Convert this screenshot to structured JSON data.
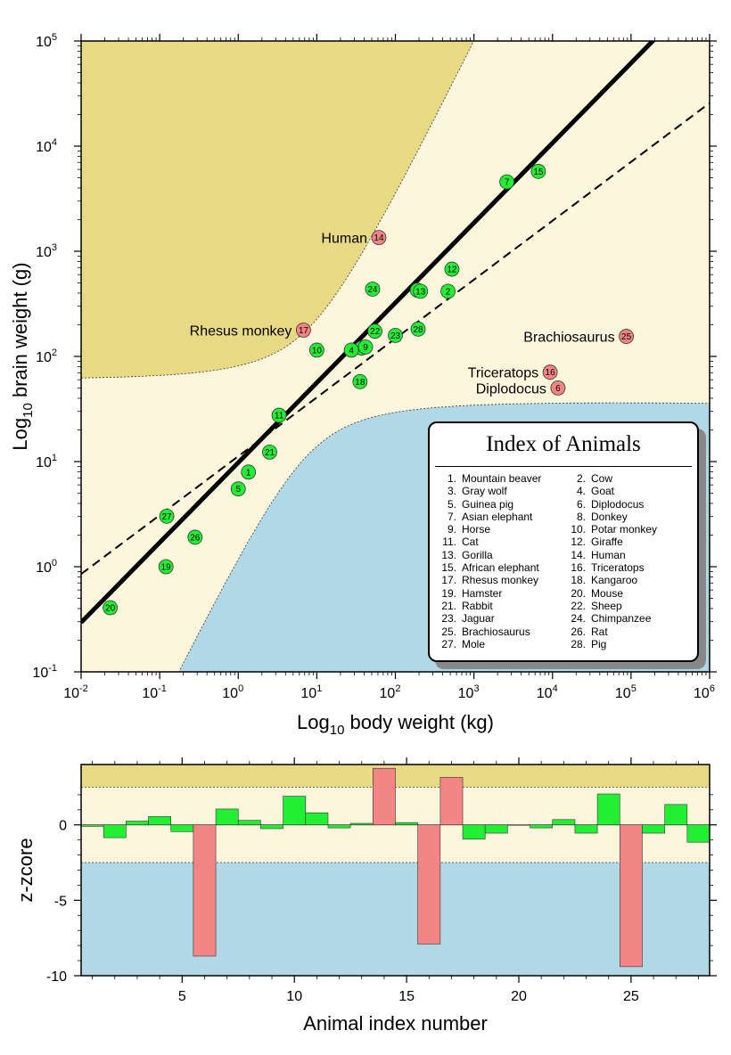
{
  "chart_data": [
    {
      "type": "scatter",
      "xlabel_main": "Log",
      "xlabel_sub": "10",
      "xlabel_rest": " body weight (kg)",
      "ylabel_main": "Log",
      "ylabel_sub": "10",
      "ylabel_rest": " brain weight (g)",
      "x_log_range": [
        -2,
        6
      ],
      "y_log_range": [
        -1,
        5
      ],
      "x_ticks": [
        {
          "base": "10",
          "exp": "-2"
        },
        {
          "base": "10",
          "exp": "-1"
        },
        {
          "base": "10",
          "exp": "0"
        },
        {
          "base": "10",
          "exp": "1"
        },
        {
          "base": "10",
          "exp": "2"
        },
        {
          "base": "10",
          "exp": "3"
        },
        {
          "base": "10",
          "exp": "4"
        },
        {
          "base": "10",
          "exp": "5"
        },
        {
          "base": "10",
          "exp": "6"
        }
      ],
      "y_ticks": [
        {
          "base": "10",
          "exp": "-1"
        },
        {
          "base": "10",
          "exp": "0"
        },
        {
          "base": "10",
          "exp": "1"
        },
        {
          "base": "10",
          "exp": "2"
        },
        {
          "base": "10",
          "exp": "3"
        },
        {
          "base": "10",
          "exp": "4"
        },
        {
          "base": "10",
          "exp": "5"
        }
      ],
      "regression_fit": {
        "intercept_log": 0.99,
        "slope": 0.76
      },
      "comparison_line": {
        "intercept_log": 1.05,
        "slope": 0.56
      },
      "band_halfwidth_log": 0.6,
      "band_curve": 0.6,
      "colors": {
        "upper": "#e8d985",
        "band": "#fdf6dc",
        "lower": "#b0d8e6",
        "inlier": "#22ee33",
        "outlier": "#f48585"
      },
      "points": [
        {
          "id": "1",
          "lx": 0.13,
          "ly": 0.9,
          "outlier": false
        },
        {
          "id": "2",
          "lx": 2.67,
          "ly": 2.62,
          "outlier": false
        },
        {
          "id": "3",
          "lx": 1.57,
          "ly": 2.08,
          "outlier": false
        },
        {
          "id": "4",
          "lx": 1.44,
          "ly": 2.06,
          "outlier": false
        },
        {
          "id": "5",
          "lx": 0.0,
          "ly": 0.74,
          "outlier": false
        },
        {
          "id": "6",
          "lx": 4.07,
          "ly": 1.7,
          "outlier": true,
          "name": "Diplodocus"
        },
        {
          "id": "7",
          "lx": 3.42,
          "ly": 3.66,
          "outlier": false
        },
        {
          "id": "8",
          "lx": 2.28,
          "ly": 2.63,
          "outlier": false
        },
        {
          "id": "9",
          "lx": 1.62,
          "ly": 2.09,
          "outlier": false
        },
        {
          "id": "10",
          "lx": 1.0,
          "ly": 2.06,
          "outlier": false
        },
        {
          "id": "11",
          "lx": 0.52,
          "ly": 1.44,
          "outlier": false
        },
        {
          "id": "12",
          "lx": 2.72,
          "ly": 2.83,
          "outlier": false
        },
        {
          "id": "13",
          "lx": 2.32,
          "ly": 2.62,
          "outlier": false
        },
        {
          "id": "14",
          "lx": 1.79,
          "ly": 3.13,
          "outlier": true,
          "name": "Human"
        },
        {
          "id": "15",
          "lx": 3.82,
          "ly": 3.76,
          "outlier": false
        },
        {
          "id": "16",
          "lx": 3.97,
          "ly": 1.85,
          "outlier": true,
          "name": "Triceratops"
        },
        {
          "id": "17",
          "lx": 0.83,
          "ly": 2.25,
          "outlier": true,
          "name": "Rhesus monkey"
        },
        {
          "id": "18",
          "lx": 1.55,
          "ly": 1.76,
          "outlier": false
        },
        {
          "id": "19",
          "lx": -0.92,
          "ly": 0.0,
          "outlier": false
        },
        {
          "id": "20",
          "lx": -1.63,
          "ly": -0.39,
          "outlier": false
        },
        {
          "id": "21",
          "lx": 0.4,
          "ly": 1.09,
          "outlier": false
        },
        {
          "id": "22",
          "lx": 1.74,
          "ly": 2.24,
          "outlier": false
        },
        {
          "id": "23",
          "lx": 2.0,
          "ly": 2.2,
          "outlier": false
        },
        {
          "id": "24",
          "lx": 1.71,
          "ly": 2.64,
          "outlier": false
        },
        {
          "id": "25",
          "lx": 4.94,
          "ly": 2.19,
          "outlier": true,
          "name": "Brachiosaurus"
        },
        {
          "id": "26",
          "lx": -0.55,
          "ly": 0.28,
          "outlier": false
        },
        {
          "id": "27",
          "lx": -0.91,
          "ly": 0.48,
          "outlier": false
        },
        {
          "id": "28",
          "lx": 2.29,
          "ly": 2.26,
          "outlier": false
        }
      ],
      "legend": {
        "title": "Index of Animals",
        "entries": [
          {
            "num": "1.",
            "name": "Mountain beaver"
          },
          {
            "num": "2.",
            "name": "Cow"
          },
          {
            "num": "3.",
            "name": "Gray wolf"
          },
          {
            "num": "4.",
            "name": "Goat"
          },
          {
            "num": "5.",
            "name": "Guinea pig"
          },
          {
            "num": "6.",
            "name": "Diplodocus"
          },
          {
            "num": "7.",
            "name": "Asian elephant"
          },
          {
            "num": "8.",
            "name": "Donkey"
          },
          {
            "num": "9.",
            "name": "Horse"
          },
          {
            "num": "10.",
            "name": "Potar monkey"
          },
          {
            "num": "11.",
            "name": "Cat"
          },
          {
            "num": "12.",
            "name": "Giraffe"
          },
          {
            "num": "13.",
            "name": "Gorilla"
          },
          {
            "num": "14.",
            "name": "Human"
          },
          {
            "num": "15.",
            "name": "African elephant"
          },
          {
            "num": "16.",
            "name": "Triceratops"
          },
          {
            "num": "17.",
            "name": "Rhesus monkey"
          },
          {
            "num": "18.",
            "name": "Kangaroo"
          },
          {
            "num": "19.",
            "name": "Hamster"
          },
          {
            "num": "20.",
            "name": "Mouse"
          },
          {
            "num": "21.",
            "name": "Rabbit"
          },
          {
            "num": "22.",
            "name": "Sheep"
          },
          {
            "num": "23.",
            "name": "Jaguar"
          },
          {
            "num": "24.",
            "name": "Chimpanzee"
          },
          {
            "num": "25.",
            "name": "Brachiosaurus"
          },
          {
            "num": "26.",
            "name": "Rat"
          },
          {
            "num": "27.",
            "name": "Mole"
          },
          {
            "num": "28.",
            "name": "Pig"
          }
        ]
      }
    },
    {
      "type": "bar",
      "xlabel": "Animal index number",
      "ylabel": "z-zcore",
      "xlim": [
        0.5,
        28.5
      ],
      "ylim": [
        -10,
        4
      ],
      "band_limits": [
        -2.5,
        2.5
      ],
      "x_ticks": [
        "5",
        "10",
        "15",
        "20",
        "25"
      ],
      "y_ticks": [
        "-10",
        "-5",
        "0"
      ],
      "categories": [
        "1",
        "2",
        "3",
        "4",
        "5",
        "6",
        "7",
        "8",
        "9",
        "10",
        "11",
        "12",
        "13",
        "14",
        "15",
        "16",
        "17",
        "18",
        "19",
        "20",
        "21",
        "22",
        "23",
        "24",
        "25",
        "26",
        "27",
        "28"
      ],
      "values": [
        -0.1,
        -0.85,
        0.25,
        0.55,
        -0.45,
        -8.7,
        1.05,
        0.3,
        -0.25,
        1.9,
        0.8,
        -0.2,
        0.1,
        3.75,
        0.15,
        -7.9,
        3.15,
        -0.95,
        -0.55,
        0.0,
        -0.2,
        0.35,
        -0.55,
        2.05,
        -9.4,
        -0.55,
        1.35,
        -1.15
      ],
      "outliers": [
        "6",
        "14",
        "16",
        "17",
        "25"
      ]
    }
  ]
}
